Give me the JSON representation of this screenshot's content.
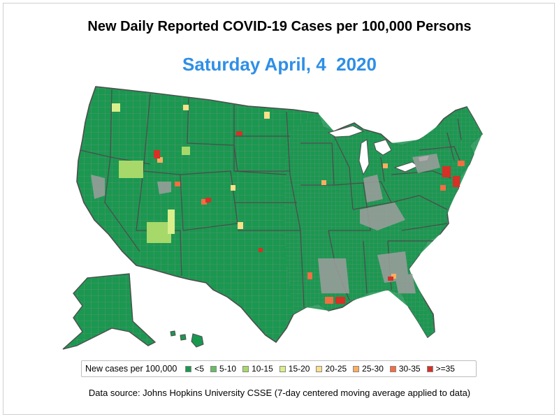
{
  "title": "New Daily Reported COVID-19 Cases per 100,000 Persons",
  "date_label": "Saturday April, 4  2020",
  "legend": {
    "title": "New cases per 100,000",
    "items": [
      {
        "label": "<5",
        "color": "#1a9850"
      },
      {
        "label": "5-10",
        "color": "#66bd63"
      },
      {
        "label": "10-15",
        "color": "#a6d96a"
      },
      {
        "label": "15-20",
        "color": "#d9ef8b"
      },
      {
        "label": "20-25",
        "color": "#fee08b"
      },
      {
        "label": "25-30",
        "color": "#fdae61"
      },
      {
        "label": "30-35",
        "color": "#f46d43"
      },
      {
        "label": ">=35",
        "color": "#d73027"
      }
    ]
  },
  "source_note": "Data source: Johns Hopkins University CSSE (7-day centered moving average applied to data)",
  "map_colors": {
    "county_fill": "#1a9850",
    "county_border": "#8a8a8a",
    "state_border": "#4d4d4d",
    "no_data": "#9e9e9e"
  }
}
